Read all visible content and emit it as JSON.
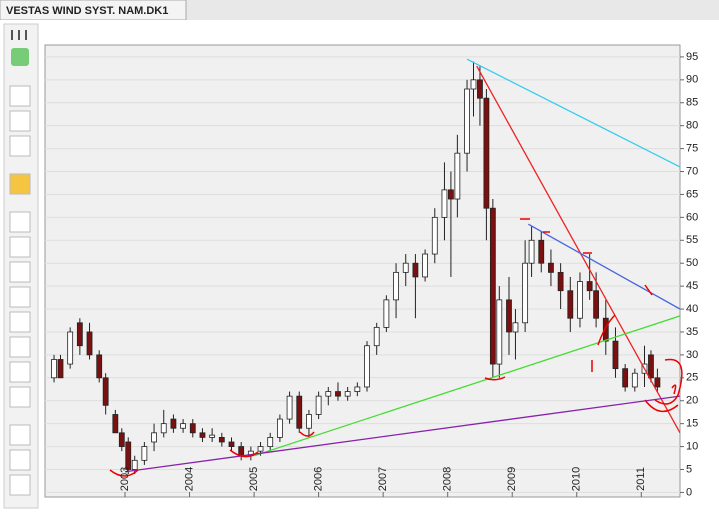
{
  "chart_data": {
    "type": "candlestick",
    "title": "VESTAS WIND SYST. NAM.DK1",
    "x": [
      2001.9,
      2002.0,
      2002.15,
      2002.3,
      2002.45,
      2002.6,
      2002.7,
      2002.85,
      2002.95,
      2003.05,
      2003.15,
      2003.3,
      2003.45,
      2003.6,
      2003.75,
      2003.9,
      2004.05,
      2004.2,
      2004.35,
      2004.5,
      2004.65,
      2004.8,
      2004.95,
      2005.1,
      2005.25,
      2005.4,
      2005.55,
      2005.7,
      2005.85,
      2006.0,
      2006.15,
      2006.3,
      2006.45,
      2006.6,
      2006.75,
      2006.9,
      2007.05,
      2007.2,
      2007.35,
      2007.5,
      2007.65,
      2007.8,
      2007.95,
      2008.05,
      2008.15,
      2008.3,
      2008.4,
      2008.5,
      2008.6,
      2008.7,
      2008.8,
      2008.95,
      2009.05,
      2009.2,
      2009.3,
      2009.45,
      2009.6,
      2009.75,
      2009.9,
      2010.05,
      2010.2,
      2010.3,
      2010.45,
      2010.6,
      2010.75,
      2010.9,
      2011.05,
      2011.15,
      2011.25
    ],
    "open": [
      25,
      29,
      28,
      37,
      35,
      30,
      25,
      17,
      13,
      11,
      5,
      7,
      11,
      13,
      16,
      14,
      15,
      13,
      12,
      12,
      11,
      10,
      8,
      9,
      10,
      12,
      16,
      21,
      14,
      17,
      21,
      22,
      21,
      22,
      23,
      32,
      36,
      42,
      48,
      50,
      47,
      52,
      60,
      66,
      64,
      74,
      88,
      90,
      86,
      62,
      28,
      42,
      35,
      37,
      50,
      55,
      50,
      48,
      44,
      38,
      46,
      44,
      38,
      33,
      27,
      23,
      26,
      30,
      25
    ],
    "high": [
      30,
      30,
      36,
      38,
      37,
      31,
      26,
      18,
      14,
      12,
      8,
      11,
      15,
      18,
      17,
      16,
      16,
      14,
      14,
      13,
      12,
      11,
      10,
      11,
      13,
      17,
      22,
      22,
      18,
      22,
      23,
      24,
      23,
      24,
      33,
      37,
      43,
      50,
      52,
      52,
      53,
      62,
      72,
      70,
      78,
      90,
      94,
      93,
      88,
      64,
      45,
      47,
      40,
      55,
      58,
      57,
      53,
      50,
      47,
      48,
      52,
      48,
      42,
      36,
      28,
      27,
      32,
      31,
      27
    ],
    "low": [
      24,
      25,
      27,
      30,
      29,
      24,
      17,
      13,
      9,
      4,
      4,
      6,
      9,
      12,
      13,
      13,
      12,
      11,
      11,
      10,
      9,
      7,
      7,
      8,
      9,
      11,
      15,
      13,
      12,
      16,
      19,
      20,
      20,
      21,
      22,
      30,
      35,
      38,
      45,
      38,
      46,
      50,
      55,
      47,
      60,
      70,
      82,
      80,
      55,
      25,
      25,
      30,
      29,
      35,
      47,
      48,
      45,
      40,
      35,
      36,
      42,
      36,
      30,
      25,
      22,
      22,
      23,
      24,
      22
    ],
    "close": [
      29,
      25,
      35,
      32,
      30,
      25,
      19,
      13,
      10,
      5,
      7,
      10,
      13,
      15,
      14,
      15,
      13,
      12,
      12.5,
      11,
      10,
      8,
      9,
      10,
      12,
      16,
      21,
      14,
      17,
      21,
      22,
      21,
      22,
      23,
      32,
      36,
      42,
      48,
      50,
      47,
      52,
      60,
      66,
      64,
      74,
      88,
      90,
      86,
      62,
      28,
      42,
      35,
      37,
      50,
      55,
      50,
      48,
      44,
      38,
      46,
      44,
      38,
      33,
      27,
      23,
      26,
      28,
      25,
      23
    ],
    "up_color": "#ffffff",
    "down_color": "#7a1010",
    "xlim": [
      2001.76,
      2011.6
    ],
    "ylim": [
      -1,
      97.6
    ],
    "xticks": [
      2003,
      2004,
      2005,
      2006,
      2007,
      2008,
      2009,
      2010,
      2011
    ],
    "yticks": [
      0,
      5,
      10,
      15,
      20,
      25,
      30,
      35,
      40,
      45,
      50,
      55,
      60,
      65,
      70,
      75,
      80,
      85,
      90,
      95
    ],
    "grid": true,
    "trendlines": [
      {
        "color": "#33ccee",
        "x": [
          2008.3,
          2011.6
        ],
        "y": [
          94.5,
          71
        ]
      },
      {
        "color": "#ee2222",
        "x": [
          2008.45,
          2011.6
        ],
        "y": [
          93,
          13
        ]
      },
      {
        "color": "#4466dd",
        "x": [
          2009.25,
          2011.6
        ],
        "y": [
          58.5,
          40
        ]
      },
      {
        "color": "#44dd33",
        "x": [
          2005.0,
          2011.6
        ],
        "y": [
          8,
          38.5
        ]
      },
      {
        "color": "#8822aa",
        "x": [
          2003.0,
          2011.6
        ],
        "y": [
          4.5,
          21
        ]
      }
    ]
  }
}
